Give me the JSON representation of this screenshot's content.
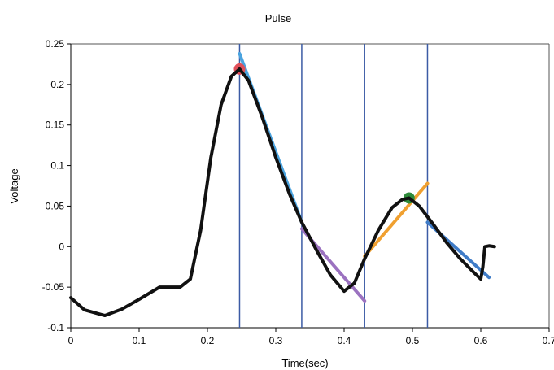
{
  "chart_data": {
    "type": "line",
    "title": "Pulse",
    "xlabel": "Time(sec)",
    "ylabel": "Voltage",
    "xlim": [
      0,
      0.7
    ],
    "ylim": [
      -0.1,
      0.25
    ],
    "x_ticks": [
      0,
      0.1,
      0.2,
      0.3,
      0.4,
      0.5,
      0.6,
      0.7
    ],
    "x_tick_labels": [
      "0",
      "0.1",
      "0.2",
      "0.3",
      "0.4",
      "0.5",
      "0.6",
      "0.7"
    ],
    "y_ticks": [
      -0.1,
      -0.05,
      0,
      0.05,
      0.1,
      0.15,
      0.2,
      0.25
    ],
    "y_tick_labels": [
      "-0.1",
      "-0.05",
      "0",
      "0.05",
      "0.1",
      "0.15",
      "0.2",
      "0.25"
    ],
    "grid": false,
    "vertical_lines": [
      0.247,
      0.338,
      0.43,
      0.522
    ],
    "series": [
      {
        "color": "#111111",
        "points": [
          [
            0,
            -0.063
          ],
          [
            0.02,
            -0.078
          ],
          [
            0.05,
            -0.085
          ],
          [
            0.075,
            -0.077
          ],
          [
            0.1,
            -0.065
          ],
          [
            0.13,
            -0.05
          ],
          [
            0.16,
            -0.05
          ],
          [
            0.175,
            -0.04
          ],
          [
            0.19,
            0.02
          ],
          [
            0.205,
            0.11
          ],
          [
            0.22,
            0.175
          ],
          [
            0.235,
            0.21
          ],
          [
            0.247,
            0.219
          ],
          [
            0.26,
            0.205
          ],
          [
            0.28,
            0.16
          ],
          [
            0.3,
            0.11
          ],
          [
            0.32,
            0.065
          ],
          [
            0.338,
            0.03
          ],
          [
            0.36,
            -0.005
          ],
          [
            0.38,
            -0.035
          ],
          [
            0.4,
            -0.055
          ],
          [
            0.415,
            -0.045
          ],
          [
            0.43,
            -0.015
          ],
          [
            0.45,
            0.02
          ],
          [
            0.47,
            0.048
          ],
          [
            0.485,
            0.058
          ],
          [
            0.495,
            0.06
          ],
          [
            0.51,
            0.05
          ],
          [
            0.53,
            0.028
          ],
          [
            0.55,
            0.005
          ],
          [
            0.57,
            -0.015
          ],
          [
            0.59,
            -0.032
          ],
          [
            0.6,
            -0.04
          ],
          [
            0.603,
            -0.025
          ],
          [
            0.606,
            0.0
          ],
          [
            0.612,
            0.001
          ],
          [
            0.62,
            0.0
          ]
        ]
      },
      {
        "color": "#4aa3df",
        "points": [
          [
            0.247,
            0.238
          ],
          [
            0.338,
            0.03
          ]
        ]
      },
      {
        "color": "#9b72c0",
        "points": [
          [
            0.338,
            0.022
          ],
          [
            0.43,
            -0.067
          ]
        ]
      },
      {
        "color": "#f0a030",
        "points": [
          [
            0.43,
            -0.012
          ],
          [
            0.522,
            0.078
          ]
        ]
      },
      {
        "color": "#3f7cc8",
        "points": [
          [
            0.522,
            0.03
          ],
          [
            0.612,
            -0.038
          ]
        ]
      }
    ],
    "markers": [
      {
        "x": 0.247,
        "y": 0.219,
        "color": "#e0505a"
      },
      {
        "x": 0.495,
        "y": 0.06,
        "color": "#2e8b3a"
      }
    ]
  }
}
